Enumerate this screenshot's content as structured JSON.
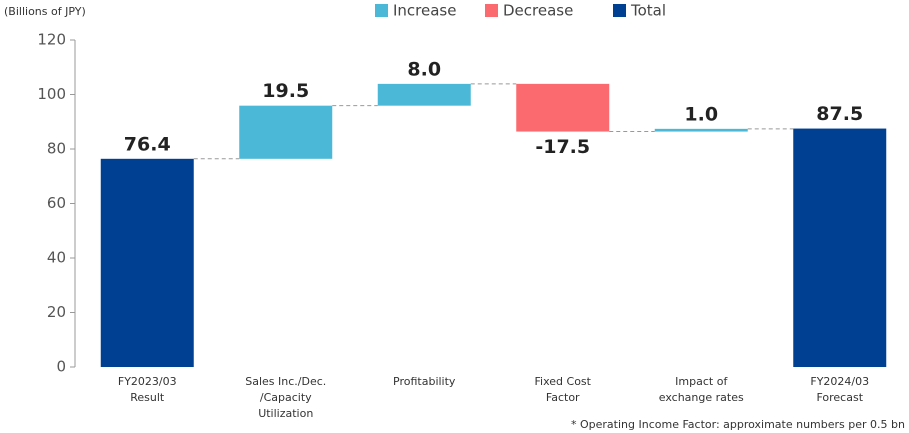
{
  "chart_data": {
    "type": "waterfall",
    "y_unit": "(Billions of JPY)",
    "footnote": "* Operating Income Factor: approximate numbers per 0.5 bn",
    "legend": [
      {
        "name": "Increase",
        "color": "#4ab8d6"
      },
      {
        "name": "Decrease",
        "color": "#fb6a6e"
      },
      {
        "name": "Total",
        "color": "#004092"
      }
    ],
    "categories": [
      [
        "FY2023/03",
        "Result"
      ],
      [
        "Sales Inc./Dec.",
        "/Capacity",
        "Utilization"
      ],
      [
        "Profitability"
      ],
      [
        "Fixed Cost",
        "Factor"
      ],
      [
        "Impact of",
        "exchange rates"
      ],
      [
        "FY2024/03",
        "Forecast"
      ]
    ],
    "bar_kinds": [
      "Total",
      "Increase",
      "Increase",
      "Decrease",
      "Increase",
      "Total"
    ],
    "values": [
      76.4,
      19.5,
      8,
      -17.5,
      1,
      87.5
    ],
    "value_labels": [
      "76.4",
      "19.5",
      "8.0",
      "-17.5",
      "1.0",
      "87.5"
    ],
    "ylim": [
      0,
      120
    ],
    "yticks": [
      0,
      20,
      40,
      60,
      80,
      100,
      120
    ]
  }
}
